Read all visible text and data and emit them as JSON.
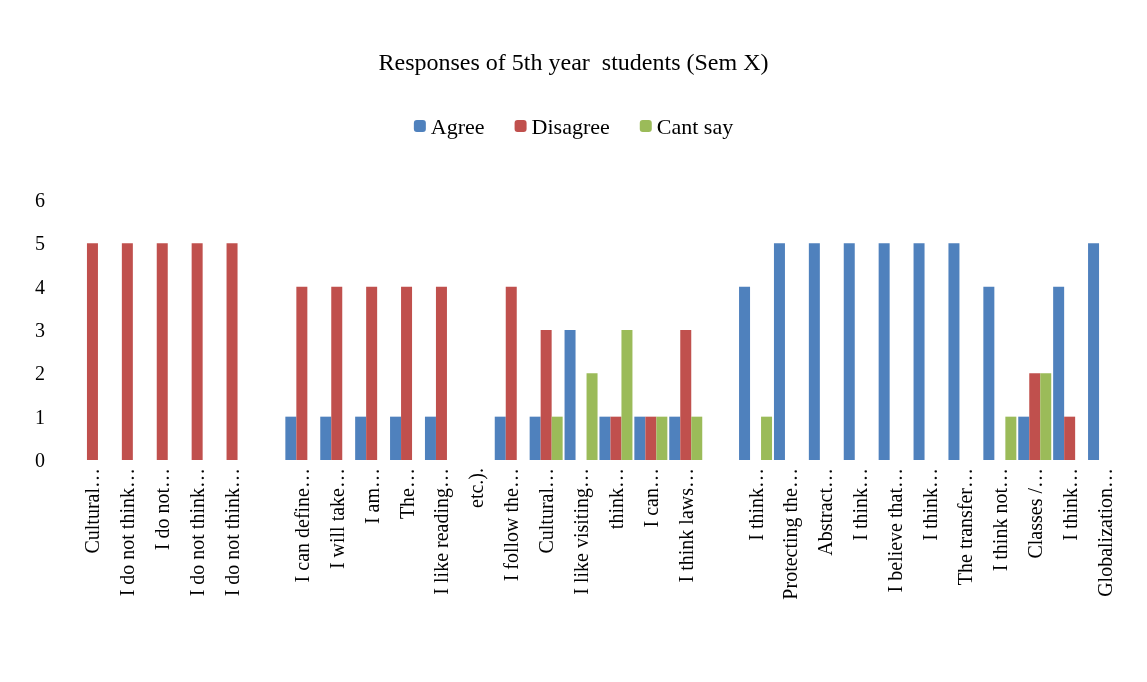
{
  "chart_data": {
    "type": "bar",
    "title": "Responses of 5th year  students (Sem X)",
    "categories": [
      "Cultural…",
      "I do not think…",
      "I do not…",
      "I do not think…",
      "I do not think…",
      null,
      "I can define…",
      "I will take…",
      "I am…",
      "The…",
      "I like reading…",
      "etc.).",
      "I follow the…",
      "Cultural…",
      "I like visiting…",
      "think…",
      "I can…",
      "I think laws…",
      null,
      "I think…",
      "Protecting the…",
      "Abstract…",
      "I think…",
      "I believe that…",
      "I think…",
      "The transfer…",
      "I think not…",
      "Classes /…",
      "I think…",
      "Globalization…"
    ],
    "series": [
      {
        "name": "Agree",
        "color": "#4f81bd",
        "values": [
          0,
          0,
          0,
          0,
          0,
          null,
          1,
          1,
          1,
          1,
          1,
          0,
          1,
          1,
          3,
          1,
          1,
          1,
          null,
          4,
          5,
          5,
          5,
          5,
          5,
          5,
          4,
          1,
          4,
          5
        ]
      },
      {
        "name": "Disagree",
        "color": "#c0504d",
        "values": [
          5,
          5,
          5,
          5,
          5,
          null,
          4,
          4,
          4,
          4,
          4,
          0,
          4,
          3,
          0,
          1,
          1,
          3,
          null,
          0,
          0,
          0,
          0,
          0,
          0,
          0,
          0,
          2,
          1,
          0
        ]
      },
      {
        "name": "Cant say",
        "color": "#9bbb59",
        "values": [
          0,
          0,
          0,
          0,
          0,
          null,
          0,
          0,
          0,
          0,
          0,
          0,
          0,
          1,
          2,
          3,
          1,
          1,
          null,
          1,
          0,
          0,
          0,
          0,
          0,
          0,
          1,
          2,
          0,
          0
        ]
      }
    ],
    "ylim": [
      0,
      6
    ],
    "yticks": [
      0,
      1,
      2,
      3,
      4,
      5,
      6
    ],
    "grid": false,
    "legend": "top"
  }
}
